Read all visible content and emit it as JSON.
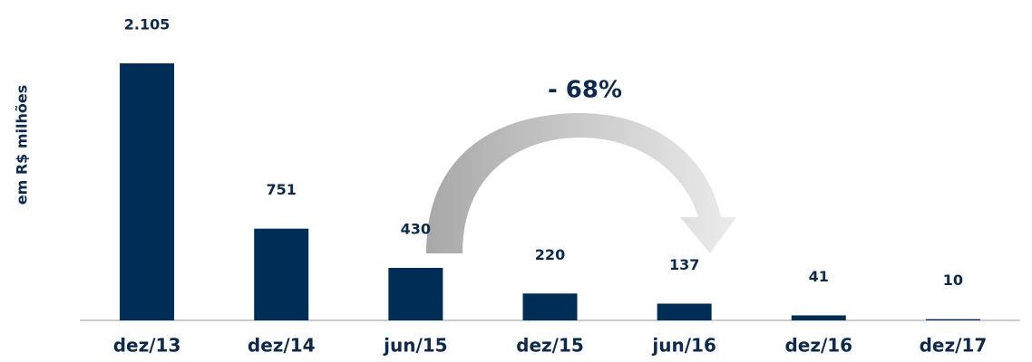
{
  "chart_data": {
    "type": "bar",
    "y_label": "em R$ milhões",
    "annotation": "- 68%",
    "categories": [
      "dez/13",
      "dez/14",
      "jun/15",
      "dez/15",
      "jun/16",
      "dez/16",
      "dez/17"
    ],
    "values": [
      2105,
      751,
      430,
      220,
      137,
      41,
      10
    ],
    "value_labels": [
      "2.105",
      "751",
      "430",
      "220",
      "137",
      "41",
      "10"
    ],
    "color": "#002d55"
  }
}
